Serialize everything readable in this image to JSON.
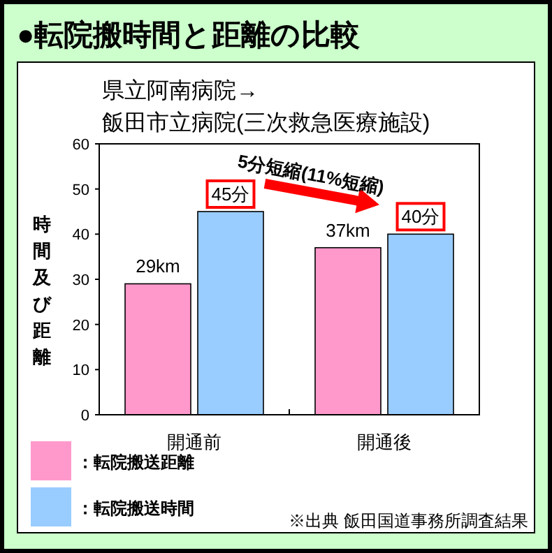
{
  "chart_data": {
    "type": "bar",
    "title": "●転院搬時間と距離の比較",
    "subtitle": "県立阿南病院→\n飯田市立病院(三次救急医療施設)",
    "ylabel": "時間及び距離",
    "categories": [
      "開通前",
      "開通後"
    ],
    "series": [
      {
        "name": "：転院搬送距離",
        "color": "#ff99cc",
        "values": [
          29,
          37
        ],
        "value_labels": [
          "29km",
          "37km"
        ]
      },
      {
        "name": "：転院搬送時間",
        "color": "#99ccff",
        "values": [
          45,
          40
        ],
        "value_labels": [
          "45分",
          "40分"
        ]
      }
    ],
    "ylim": [
      0,
      60
    ],
    "yticks": [
      0,
      10,
      20,
      30,
      40,
      50,
      60
    ],
    "grid": false,
    "legend": "bottom left",
    "annotations": [
      "5分短縮(11%短縮)",
      "※出典 飯田国道事務所調査結果"
    ]
  }
}
